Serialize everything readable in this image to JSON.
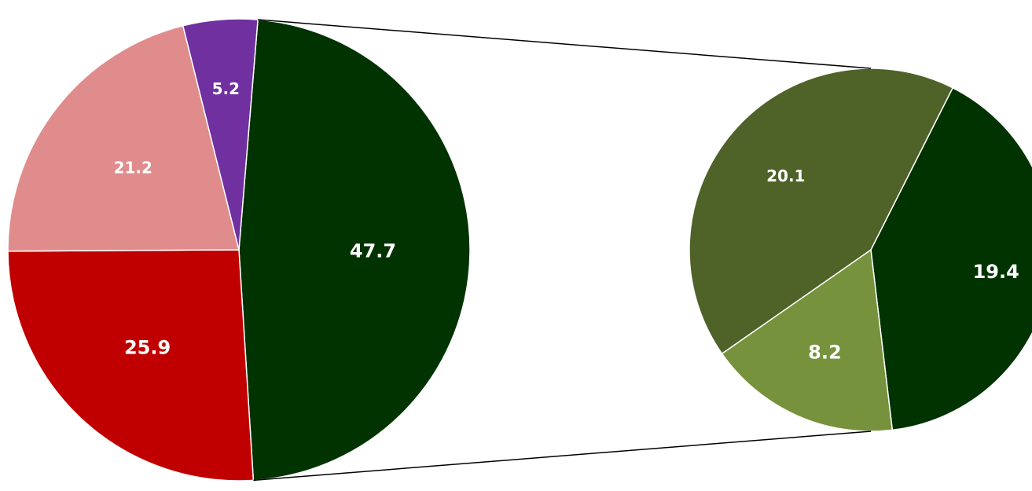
{
  "chart_data": {
    "type": "pie",
    "subtype": "pie-of-pie",
    "main_pie": {
      "slices": [
        {
          "label": "47.7",
          "value": 47.7,
          "color": "#003300"
        },
        {
          "label": "25.9",
          "value": 25.9,
          "color": "#c00000"
        },
        {
          "label": "21.2",
          "value": 21.2,
          "color": "#e08c8c"
        },
        {
          "label": "5.2",
          "value": 5.2,
          "color": "#7030a0"
        }
      ]
    },
    "secondary_pie": {
      "slices": [
        {
          "label": "19.4",
          "value": 19.4,
          "color": "#003300"
        },
        {
          "label": "8.2",
          "value": 8.2,
          "color": "#76923c"
        },
        {
          "label": "20.1",
          "value": 20.1,
          "color": "#4f6228"
        }
      ]
    },
    "connector_color": "#000000",
    "slice_border_color": "#ffffff",
    "legend": "none",
    "title": ""
  }
}
